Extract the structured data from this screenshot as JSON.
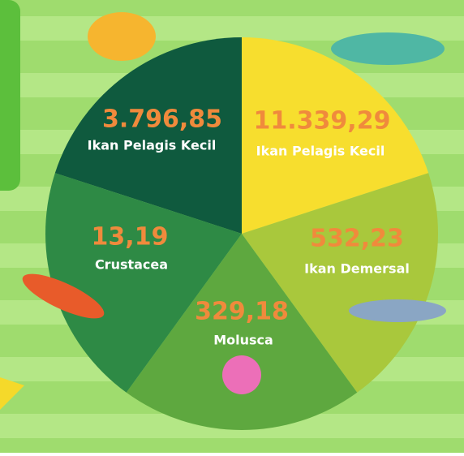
{
  "segments": [
    {
      "value": "3.796,85",
      "label": "Ikan Pelagis Kecil"
    },
    {
      "value": "11.339,29",
      "label": "Ikan Pelagis Kecil"
    },
    {
      "value": "532,23",
      "label": "Ikan Demersal"
    },
    {
      "value": "329,18",
      "label": "Molusca"
    },
    {
      "value": "13,19",
      "label": "Crustacea"
    }
  ]
}
